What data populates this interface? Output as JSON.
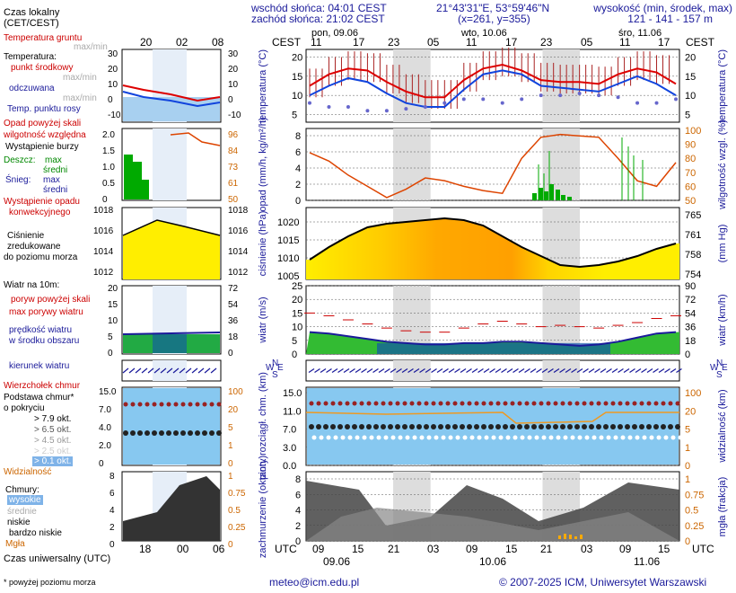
{
  "header": {
    "sunrise": "wschód słońca: 04:01 CEST",
    "sunset": "zachód słońca: 21:02 CEST",
    "coords": "21°43'31\"E, 53°59'46\"N",
    "grid": "(x=261, y=355)",
    "height_label": "wysokość (min, środek, max)",
    "height_values": "121 - 141 - 157 m",
    "days_top": [
      "pon, 09.06",
      "wto, 10.06",
      "śro, 11.06"
    ],
    "cest": "CEST",
    "top_hours": [
      "11",
      "17",
      "23",
      "05",
      "11",
      "17",
      "23",
      "05",
      "11",
      "17"
    ]
  },
  "legend": {
    "tz_line1": "Czas lokalny",
    "tz_line2": "(CET/CEST)",
    "mini_hours": [
      "20",
      "02",
      "08"
    ],
    "ground_temp": "Temperatura gruntu",
    "ground_maxmin": "max/min",
    "temp": "Temperatura:",
    "temp_mid": "punkt środkowy",
    "temp_maxmin": "max/min",
    "temp_feel": "odczuwana",
    "temp_feel_maxmin": "max/min",
    "dew": "Temp. punktu rosy",
    "precip_over": "Opad powyżej skali",
    "humidity": "wilgotność względna",
    "storm": "Wystąpienie burzy",
    "rain": "Deszcz:",
    "rain_max": "max",
    "rain_mid": "średni",
    "snow": "Śnieg:",
    "snow_max": "max",
    "snow_mid": "średni",
    "conv1": "Wystąpienie opadu",
    "conv2": "konwekcyjnego",
    "press1": "Ciśnienie",
    "press2": "zredukowane",
    "press3": "do poziomu morza",
    "wind": "Wiatr na 10m:",
    "gust_over": "poryw powyżej skali",
    "gust_max": "max porywy wiatru",
    "wind_speed1": "prędkość wiatru",
    "wind_speed2": "w środku obszaru",
    "wind_dir": "kierunek wiatru",
    "shear": "Wierzchołek chmur",
    "base1": "Podstawa chmur*",
    "base2": "o pokryciu",
    "okt": [
      "> 7.9 okt.",
      "> 6.5 okt.",
      "> 4.5 okt.",
      "> 2.5 okt.",
      "> 0.1 okt."
    ],
    "vis": "Widzialność",
    "clouds": "Chmury:",
    "cl_high": "wysokie",
    "cl_mid": "średnie",
    "cl_low": "niskie",
    "cl_vlow": "bardzo niskie",
    "fog": "Mgła",
    "utc_label": "Czas uniwersalny (UTC)",
    "mini_utc_hours": [
      "18",
      "00",
      "06"
    ],
    "footnote": "* powyżej poziomu morza"
  },
  "axes": {
    "temp_label": "temperatura (°C)",
    "temp_ticks": [
      "20",
      "15",
      "10",
      "5"
    ],
    "mini_temp_ticks": [
      "30",
      "20",
      "10",
      "0",
      "-10"
    ],
    "precip_label": "opad (mm/h, kg/m²/h)",
    "precip_ticks": [
      "8",
      "6",
      "4",
      "2",
      "0"
    ],
    "mini_precip_ticks": [
      "2.0",
      "1.5",
      "1.0",
      "0.5",
      "0"
    ],
    "hum_label": "wilgotność wzgl. (%)",
    "hum_ticks": [
      "100",
      "90",
      "80",
      "70",
      "60",
      "50"
    ],
    "mini_hum_ticks": [
      "96",
      "84",
      "73",
      "61",
      "50"
    ],
    "press_label": "ciśnienie (hPa)",
    "press_ticks": [
      "1020",
      "1015",
      "1010",
      "1005"
    ],
    "mini_press_ticks": [
      "1018",
      "1016",
      "1014",
      "1012"
    ],
    "press_mm_label": "(mm Hg)",
    "press_mm_ticks": [
      "765",
      "761",
      "758",
      "754"
    ],
    "mini_press_mm_ticks": [
      "1018",
      "1016",
      "1014",
      "1012"
    ],
    "wind_label": "wiatr (m/s)",
    "wind_ticks": [
      "25",
      "20",
      "15",
      "10",
      "5",
      "0"
    ],
    "mini_wind_ticks": [
      "20",
      "15",
      "10",
      "5",
      "0"
    ],
    "wind_kmh_label": "wiatr (km/h)",
    "wind_kmh_ticks": [
      "90",
      "72",
      "54",
      "36",
      "18",
      "0"
    ],
    "mini_wind_kmh_ticks": [
      "72",
      "54",
      "36",
      "18",
      "0"
    ],
    "dir_labels": [
      "W",
      "N",
      "E",
      "S"
    ],
    "cloud_label": "pion. rozciągł. chm. (km)",
    "cloud_ticks": [
      "15.0",
      "11.0",
      "7.0",
      "3.0",
      "0.0"
    ],
    "mini_cloud_ticks": [
      "15.0",
      "7.0",
      "4.0",
      "2.0",
      "0"
    ],
    "vis_label": "widzialność (km)",
    "vis_ticks": [
      "100",
      "20",
      "5",
      "1",
      "0"
    ],
    "mini_vis_ticks": [
      "100",
      "20",
      "5",
      "1",
      "0"
    ],
    "cover_label": "zachmurzenie (oktanty)",
    "cover_ticks": [
      "8",
      "6",
      "4",
      "2",
      "0"
    ],
    "fog_label": "mgła (frakcja)",
    "fog_ticks": [
      "1",
      "0.75",
      "0.5",
      "0.25",
      "0"
    ]
  },
  "bottom": {
    "utc": "UTC",
    "hours": [
      "09",
      "15",
      "21",
      "03",
      "09",
      "15",
      "21",
      "03",
      "09",
      "15"
    ],
    "dates": [
      "09.06",
      "10.06",
      "11.06"
    ],
    "email": "meteo@icm.edu.pl",
    "copyright": "© 2007-2025 ICM, Uniwersytet Warszawski"
  },
  "colors": {
    "temp": "#dd0000",
    "temp_feel": "#1144dd",
    "dew": "#6666cc",
    "precip": "#00aa00",
    "humidity": "#dd4400",
    "pressure": "#ffdd00",
    "wind": "#00aa00",
    "gust": "#cc0000",
    "sky": "#87c8f0",
    "night": "#dddddd"
  },
  "chart_data": [
    {
      "type": "line",
      "title": "temperatura (°C)",
      "x": [
        "09.06 09",
        "09.06 12",
        "09.06 15",
        "09.06 18",
        "09.06 21",
        "10.06 00",
        "10.06 03",
        "10.06 06",
        "10.06 09",
        "10.06 12",
        "10.06 15",
        "10.06 18",
        "10.06 21",
        "11.06 00",
        "11.06 03",
        "11.06 06",
        "11.06 09",
        "11.06 12",
        "11.06 15",
        "11.06 18"
      ],
      "series": [
        {
          "name": "punkt środkowy",
          "values": [
            12.5,
            15.5,
            17,
            16.5,
            13.5,
            11,
            9.5,
            9.5,
            14,
            17,
            18,
            16.5,
            14,
            13.5,
            13.5,
            13,
            15.5,
            17,
            16,
            13
          ]
        },
        {
          "name": "odczuwana",
          "values": [
            10,
            12.5,
            14.5,
            13.5,
            10.5,
            8,
            7,
            7,
            11.5,
            15.5,
            16.5,
            15.5,
            12.5,
            12,
            11.5,
            11,
            13,
            15,
            13,
            10
          ]
        },
        {
          "name": "Temp. punktu rosy",
          "values": [
            8,
            7,
            7,
            6,
            6,
            6.5,
            7,
            8,
            9,
            9,
            8,
            9,
            10,
            10,
            10.5,
            10,
            9.5,
            8,
            8,
            9
          ]
        }
      ],
      "ylim": [
        3,
        22
      ]
    },
    {
      "type": "line",
      "title": "wilgotność wzgl. (%)",
      "series": [
        {
          "name": "wilgotność względna",
          "values": [
            84,
            78,
            68,
            60,
            52,
            58,
            66,
            64,
            60,
            57,
            55,
            80,
            95,
            97,
            96,
            95,
            80,
            64,
            60,
            77
          ]
        }
      ],
      "ylim": [
        50,
        100
      ]
    },
    {
      "type": "area",
      "title": "ciśnienie (hPa)",
      "series": [
        {
          "name": "Ciśnienie",
          "values": [
            1009.5,
            1013,
            1016,
            1018.5,
            1019.5,
            1020,
            1020.5,
            1021,
            1020.5,
            1019,
            1016,
            1013,
            1010.5,
            1008,
            1007.5,
            1008,
            1009,
            1010.5,
            1012.5,
            1014
          ]
        }
      ],
      "ylim": [
        1004,
        1024
      ]
    },
    {
      "type": "line",
      "title": "wiatr (m/s)",
      "series": [
        {
          "name": "prędkość wiatru",
          "values": [
            8,
            7.5,
            6.5,
            5.5,
            4.5,
            4,
            3.5,
            3.5,
            4,
            4,
            4.5,
            4.5,
            4,
            3.5,
            3,
            3.5,
            4.5,
            6,
            7.5,
            8
          ]
        },
        {
          "name": "max porywy wiatru",
          "values": [
            15,
            14,
            12.5,
            11,
            9.5,
            8.5,
            8,
            8,
            9.5,
            11,
            12,
            11,
            10,
            10.5,
            10,
            9.5,
            10.5,
            11.5,
            13,
            14
          ]
        }
      ],
      "ylim": [
        0,
        25
      ]
    }
  ]
}
